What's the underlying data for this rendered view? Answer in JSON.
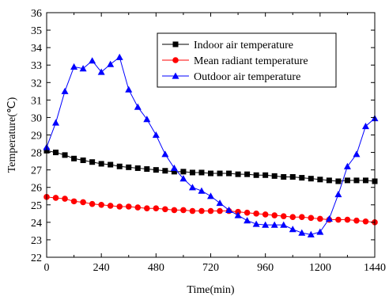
{
  "chart_data": {
    "type": "line",
    "xlabel": "Time(min)",
    "ylabel": "Temperature(℃)",
    "xlim": [
      0,
      1440
    ],
    "ylim": [
      22,
      36
    ],
    "xticks": [
      0,
      240,
      480,
      720,
      960,
      1200,
      1440
    ],
    "yticks": [
      22,
      23,
      24,
      25,
      26,
      27,
      28,
      29,
      30,
      31,
      32,
      33,
      34,
      35,
      36
    ],
    "grid": false,
    "legend_position": "top-right",
    "x": [
      0,
      40,
      80,
      120,
      160,
      200,
      240,
      280,
      320,
      360,
      400,
      440,
      480,
      520,
      560,
      600,
      640,
      680,
      720,
      760,
      800,
      840,
      880,
      920,
      960,
      1000,
      1040,
      1080,
      1120,
      1160,
      1200,
      1240,
      1280,
      1320,
      1360,
      1400,
      1440
    ],
    "series": [
      {
        "name": "Indoor air temperature",
        "color": "#000000",
        "marker": "square",
        "values": [
          28.1,
          28.0,
          27.85,
          27.65,
          27.55,
          27.45,
          27.35,
          27.3,
          27.2,
          27.15,
          27.1,
          27.05,
          27.0,
          26.95,
          26.9,
          26.9,
          26.85,
          26.85,
          26.8,
          26.8,
          26.8,
          26.75,
          26.75,
          26.7,
          26.7,
          26.65,
          26.6,
          26.6,
          26.55,
          26.5,
          26.45,
          26.4,
          26.35,
          26.4,
          26.4,
          26.4,
          26.35
        ]
      },
      {
        "name": "Mean radiant temperature",
        "color": "#ff0000",
        "marker": "circle",
        "values": [
          25.45,
          25.4,
          25.35,
          25.2,
          25.15,
          25.05,
          25.0,
          24.95,
          24.9,
          24.9,
          24.85,
          24.8,
          24.8,
          24.75,
          24.7,
          24.7,
          24.65,
          24.65,
          24.65,
          24.65,
          24.65,
          24.6,
          24.55,
          24.5,
          24.45,
          24.4,
          24.35,
          24.3,
          24.3,
          24.25,
          24.2,
          24.15,
          24.15,
          24.15,
          24.1,
          24.05,
          24.0
        ]
      },
      {
        "name": "Outdoor air temperature",
        "color": "#0000ff",
        "marker": "triangle",
        "values": [
          28.3,
          29.7,
          31.5,
          32.9,
          32.8,
          33.25,
          32.6,
          33.05,
          33.45,
          31.6,
          30.6,
          29.9,
          29.0,
          27.9,
          27.1,
          26.5,
          26.0,
          25.8,
          25.5,
          25.1,
          24.7,
          24.4,
          24.1,
          23.9,
          23.85,
          23.85,
          23.85,
          23.6,
          23.4,
          23.3,
          23.45,
          24.2,
          25.6,
          27.2,
          27.9,
          29.5,
          29.95
        ]
      }
    ]
  }
}
